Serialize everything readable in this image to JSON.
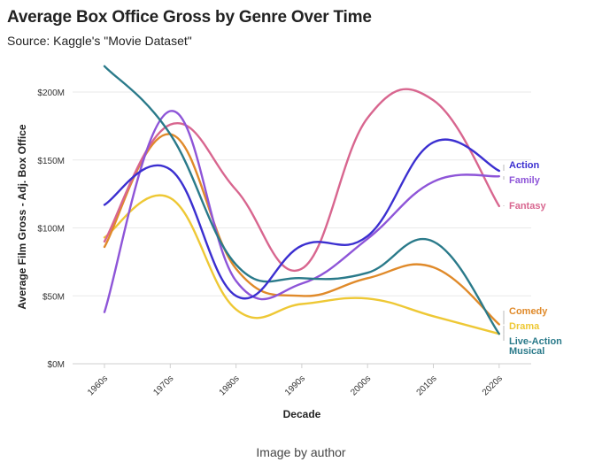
{
  "figure": {
    "caption": "Image by author"
  },
  "chart_data": {
    "type": "line",
    "title": "Average Box Office Gross by Genre Over Time",
    "subtitle": "Source: Kaggle's \"Movie Dataset\"",
    "xlabel": "Decade",
    "ylabel": "Average Film Gross - Adj. Box Office",
    "categories": [
      "1960s",
      "1970s",
      "1980s",
      "1990s",
      "2000s",
      "2010s",
      "2020s"
    ],
    "y_ticks": [
      {
        "value": 0,
        "label": "$0M"
      },
      {
        "value": 50,
        "label": "$50M"
      },
      {
        "value": 100,
        "label": "$100M"
      },
      {
        "value": 150,
        "label": "$150M"
      },
      {
        "value": 200,
        "label": "$200M"
      }
    ],
    "ylim": [
      0,
      220
    ],
    "grid": "horizontal",
    "legend": "direct labels at line ends",
    "series": [
      {
        "name": "Action",
        "label_lines": [
          "Action"
        ],
        "color": "#3b2fd0",
        "values": [
          117,
          143,
          50,
          87,
          94,
          163,
          142
        ]
      },
      {
        "name": "Family",
        "label_lines": [
          "Family"
        ],
        "color": "#8e55d8",
        "values": [
          38,
          186,
          61,
          59,
          92,
          134,
          138
        ]
      },
      {
        "name": "Fantasy",
        "label_lines": [
          "Fantasy"
        ],
        "color": "#d8668f",
        "values": [
          90,
          176,
          128,
          70,
          181,
          194,
          116
        ]
      },
      {
        "name": "Comedy",
        "label_lines": [
          "Comedy"
        ],
        "color": "#e08a2a",
        "values": [
          86,
          169,
          70,
          50,
          63,
          71,
          29
        ]
      },
      {
        "name": "Drama",
        "label_lines": [
          "Drama"
        ],
        "color": "#eec835",
        "values": [
          93,
          122,
          40,
          44,
          48,
          35,
          22
        ]
      },
      {
        "name": "Live-Action Musical",
        "label_lines": [
          "Live-Action",
          "Musical"
        ],
        "color": "#2a7a8a",
        "values": [
          219,
          169,
          73,
          63,
          67,
          90,
          22
        ]
      }
    ]
  }
}
